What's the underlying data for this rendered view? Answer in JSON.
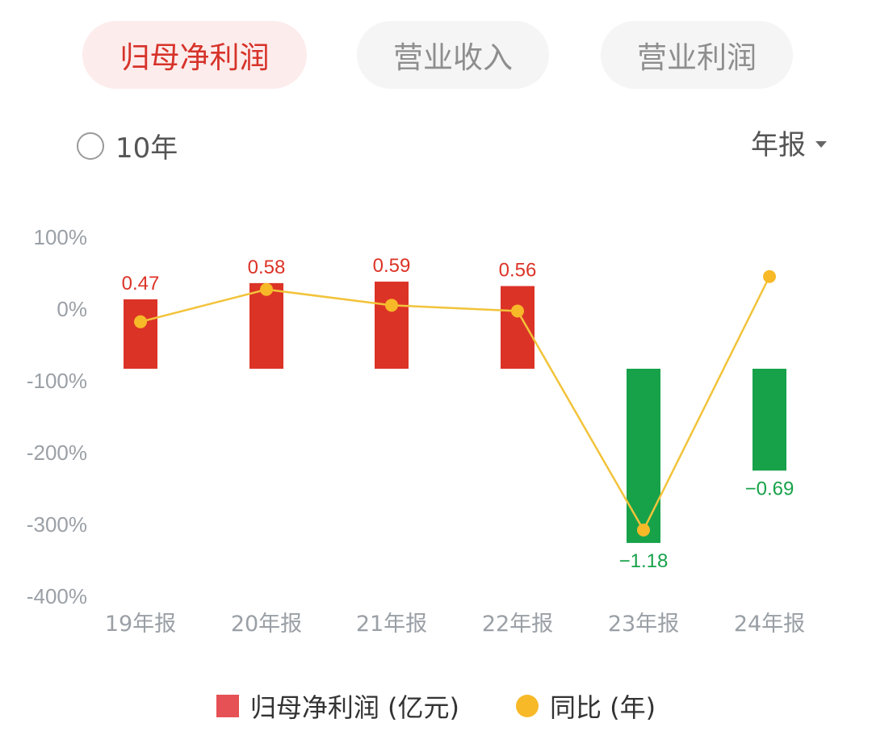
{
  "tabs": [
    {
      "label": "归母净利润",
      "active": true
    },
    {
      "label": "营业收入",
      "active": false
    },
    {
      "label": "营业利润",
      "active": false
    }
  ],
  "range_toggle": {
    "label": "10年",
    "checked": false
  },
  "period_select": {
    "label": "年报"
  },
  "legend": {
    "bar": "归母净利润 (亿元)",
    "line": "同比 (年)"
  },
  "colors": {
    "positive": "#dc3327",
    "negative": "#17a24a",
    "line": "#f2c33a",
    "dot": "#f7b928",
    "axis_text": "#9aa0a6"
  },
  "chart_data": {
    "type": "bar+line",
    "categories": [
      "19年报",
      "20年报",
      "21年报",
      "22年报",
      "23年报",
      "24年报"
    ],
    "series": [
      {
        "name": "归母净利润 (亿元)",
        "type": "bar",
        "values": [
          0.47,
          0.58,
          0.59,
          0.56,
          -1.18,
          -0.69
        ],
        "labels": [
          "0.47",
          "0.58",
          "0.59",
          "0.56",
          "−1.18",
          "−0.69"
        ]
      },
      {
        "name": "同比 (年)",
        "type": "line",
        "values": [
          -20,
          25,
          3,
          -5,
          -310,
          43
        ]
      }
    ],
    "left_axis": {
      "ticks": [
        "100%",
        "0%",
        "-100%",
        "-200%",
        "-300%",
        "-400%"
      ],
      "range": [
        -400,
        100
      ]
    },
    "bar_range": [
      -1.18,
      0.59
    ]
  }
}
